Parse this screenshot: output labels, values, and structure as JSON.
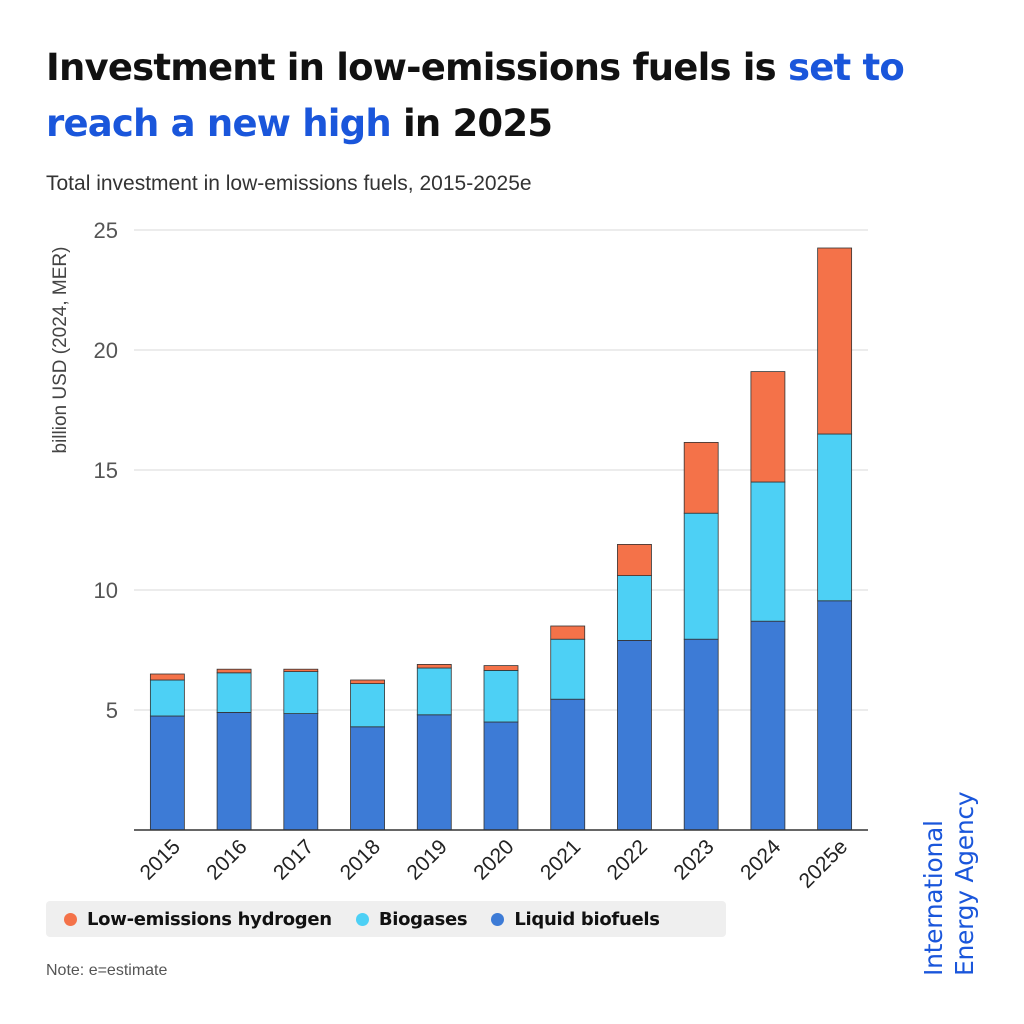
{
  "headline": {
    "part1": "Investment in low-emissions fuels is ",
    "highlight": "set to reach a new high",
    "part2": " in 2025",
    "highlight_color": "#1a56db"
  },
  "subtitle": "Total investment in low-emissions fuels, 2015-2025e",
  "chart_data": {
    "type": "bar",
    "stacked": true,
    "title": "Total investment in low-emissions fuels, 2015-2025e",
    "xlabel": "",
    "ylabel": "billion USD (2024, MER)",
    "categories": [
      "2015",
      "2016",
      "2017",
      "2018",
      "2019",
      "2020",
      "2021",
      "2022",
      "2023",
      "2024",
      "2025e"
    ],
    "ylim": [
      0,
      25
    ],
    "yticks": [
      5,
      10,
      15,
      20,
      25
    ],
    "grid": true,
    "legend_position": "bottom",
    "series": [
      {
        "name": "Liquid biofuels",
        "color": "#3d7bd6",
        "values": [
          4.75,
          4.9,
          4.85,
          4.3,
          4.8,
          4.5,
          5.45,
          7.9,
          7.95,
          8.7,
          9.55
        ]
      },
      {
        "name": "Biogases",
        "color": "#4dd0f5",
        "values": [
          1.5,
          1.65,
          1.75,
          1.8,
          1.95,
          2.15,
          2.5,
          2.7,
          5.25,
          5.8,
          6.95
        ]
      },
      {
        "name": "Low-emissions hydrogen",
        "color": "#f47249",
        "values": [
          0.25,
          0.15,
          0.1,
          0.15,
          0.15,
          0.2,
          0.55,
          1.3,
          2.95,
          4.6,
          7.75
        ]
      }
    ]
  },
  "legend": [
    {
      "label": "Low-emissions hydrogen",
      "color": "#f47249"
    },
    {
      "label": "Biogases",
      "color": "#4dd0f5"
    },
    {
      "label": "Liquid biofuels",
      "color": "#3d7bd6"
    }
  ],
  "note": "Note: e=estimate",
  "logo": {
    "line1": "International",
    "line2": "Energy Agency"
  }
}
